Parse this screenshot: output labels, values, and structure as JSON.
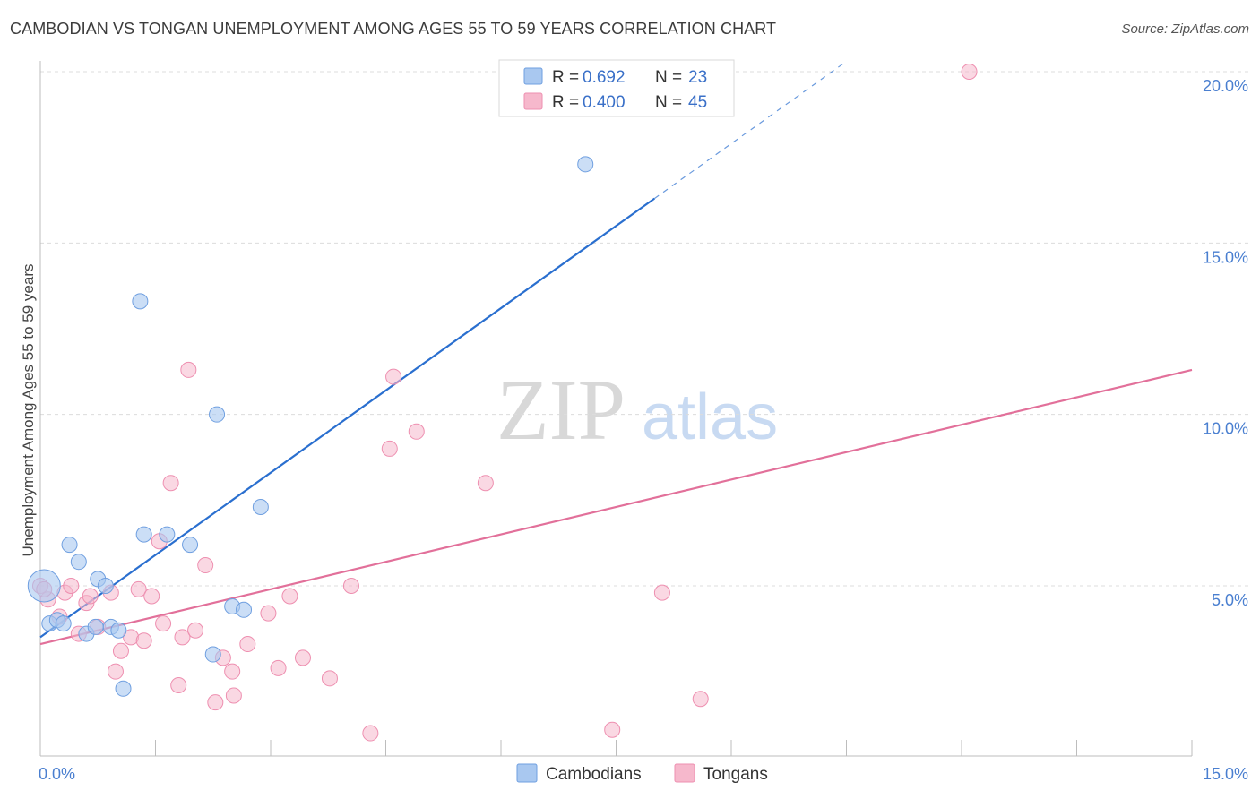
{
  "title": "CAMBODIAN VS TONGAN UNEMPLOYMENT AMONG AGES 55 TO 59 YEARS CORRELATION CHART",
  "source": "Source: ZipAtlas.com",
  "watermark": {
    "zip": "ZIP",
    "atlas": "atlas"
  },
  "legend_top": [
    {
      "r_label": "R =",
      "r_value": "0.692",
      "n_label": "N =",
      "n_value": "23"
    },
    {
      "r_label": "R =",
      "r_value": "0.400",
      "n_label": "N =",
      "n_value": "45"
    }
  ],
  "legend_bottom": [
    "Cambodians",
    "Tongans"
  ],
  "colors": {
    "cambodians_fill": "#a9c8f0",
    "cambodians_stroke": "#6f9fe0",
    "cambodians_line": "#2a6fcf",
    "tongans_fill": "#f6b8cc",
    "tongans_stroke": "#ee8fb0",
    "tongans_line": "#e2709a",
    "grid": "#dcdcdc",
    "tick_text": "#4a7fd0"
  },
  "chart_data": {
    "type": "scatter",
    "title": "CAMBODIAN VS TONGAN UNEMPLOYMENT AMONG AGES 55 TO 59 YEARS CORRELATION CHART",
    "xlabel": "",
    "ylabel": "Unemployment Among Ages 55 to 59 years",
    "xlim": [
      0,
      15
    ],
    "ylim": [
      0,
      20.5
    ],
    "x_tick_labels": [
      "0.0%",
      "15.0%"
    ],
    "y_ticks": [
      5,
      10,
      15,
      20
    ],
    "y_tick_labels": [
      "5.0%",
      "10.0%",
      "15.0%",
      "20.0%"
    ],
    "series": [
      {
        "name": "Cambodians",
        "R": 0.692,
        "N": 23,
        "points": [
          {
            "x": 0.05,
            "y": 5.0,
            "big": true
          },
          {
            "x": 0.12,
            "y": 3.9
          },
          {
            "x": 0.22,
            "y": 4.0
          },
          {
            "x": 0.3,
            "y": 3.9
          },
          {
            "x": 0.38,
            "y": 6.2
          },
          {
            "x": 0.5,
            "y": 5.7
          },
          {
            "x": 0.6,
            "y": 3.6
          },
          {
            "x": 0.72,
            "y": 3.8
          },
          {
            "x": 0.75,
            "y": 5.2
          },
          {
            "x": 0.85,
            "y": 5.0
          },
          {
            "x": 0.92,
            "y": 3.8
          },
          {
            "x": 1.02,
            "y": 3.7
          },
          {
            "x": 1.08,
            "y": 2.0
          },
          {
            "x": 1.3,
            "y": 13.3
          },
          {
            "x": 1.35,
            "y": 6.5
          },
          {
            "x": 1.65,
            "y": 6.5
          },
          {
            "x": 1.95,
            "y": 6.2
          },
          {
            "x": 2.25,
            "y": 3.0
          },
          {
            "x": 2.3,
            "y": 10.0
          },
          {
            "x": 2.5,
            "y": 4.4
          },
          {
            "x": 2.65,
            "y": 4.3
          },
          {
            "x": 2.87,
            "y": 7.3
          },
          {
            "x": 7.1,
            "y": 17.3
          }
        ],
        "trend": {
          "x0": 0.0,
          "y0": 3.5,
          "x1": 8.0,
          "y1": 16.3,
          "dash_to_x": 10.5
        }
      },
      {
        "name": "Tongans",
        "R": 0.4,
        "N": 45,
        "points": [
          {
            "x": 0.1,
            "y": 4.6
          },
          {
            "x": 0.25,
            "y": 4.1
          },
          {
            "x": 0.32,
            "y": 4.8
          },
          {
            "x": 0.4,
            "y": 5.0
          },
          {
            "x": 0.5,
            "y": 3.6
          },
          {
            "x": 0.6,
            "y": 4.5
          },
          {
            "x": 0.65,
            "y": 4.7
          },
          {
            "x": 0.75,
            "y": 3.8
          },
          {
            "x": 0.92,
            "y": 4.8
          },
          {
            "x": 0.98,
            "y": 2.5
          },
          {
            "x": 1.05,
            "y": 3.1
          },
          {
            "x": 1.18,
            "y": 3.5
          },
          {
            "x": 1.28,
            "y": 4.9
          },
          {
            "x": 1.35,
            "y": 3.4
          },
          {
            "x": 1.45,
            "y": 4.7
          },
          {
            "x": 1.55,
            "y": 6.3
          },
          {
            "x": 1.6,
            "y": 3.9
          },
          {
            "x": 1.7,
            "y": 8.0
          },
          {
            "x": 1.8,
            "y": 2.1
          },
          {
            "x": 1.85,
            "y": 3.5
          },
          {
            "x": 1.93,
            "y": 11.3
          },
          {
            "x": 2.02,
            "y": 3.7
          },
          {
            "x": 2.15,
            "y": 5.6
          },
          {
            "x": 2.28,
            "y": 1.6
          },
          {
            "x": 2.38,
            "y": 2.9
          },
          {
            "x": 2.5,
            "y": 2.5
          },
          {
            "x": 2.52,
            "y": 1.8
          },
          {
            "x": 2.7,
            "y": 3.3
          },
          {
            "x": 2.97,
            "y": 4.2
          },
          {
            "x": 3.1,
            "y": 2.6
          },
          {
            "x": 3.25,
            "y": 4.7
          },
          {
            "x": 3.42,
            "y": 2.9
          },
          {
            "x": 3.77,
            "y": 2.3
          },
          {
            "x": 4.05,
            "y": 5.0
          },
          {
            "x": 4.3,
            "y": 0.7
          },
          {
            "x": 4.6,
            "y": 11.1
          },
          {
            "x": 4.55,
            "y": 9.0
          },
          {
            "x": 4.9,
            "y": 9.5
          },
          {
            "x": 5.8,
            "y": 8.0
          },
          {
            "x": 7.45,
            "y": 0.8
          },
          {
            "x": 8.1,
            "y": 4.8
          },
          {
            "x": 8.6,
            "y": 1.7
          },
          {
            "x": 12.1,
            "y": 20.0
          },
          {
            "x": 0.0,
            "y": 5.0
          },
          {
            "x": 0.05,
            "y": 4.9
          }
        ],
        "trend": {
          "x0": 0.0,
          "y0": 3.3,
          "x1": 15.0,
          "y1": 11.3
        }
      }
    ]
  }
}
